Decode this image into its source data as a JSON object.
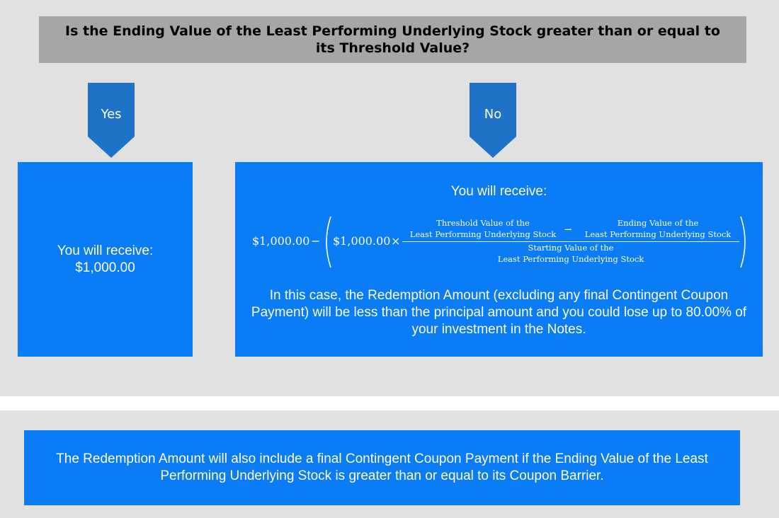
{
  "question": "Is the Ending Value of the Least Performing Underlying Stock greater than or equal to its Threshold Value?",
  "yes": {
    "label": "Yes",
    "line1": "You will receive:",
    "line2": "$1,000.00"
  },
  "no": {
    "label": "No",
    "title": "You will receive:",
    "formula": {
      "principal": "$1,000.00",
      "minus": "−",
      "inner_principal": "$1,000.00",
      "times": "×",
      "num_a_line1": "Threshold Value of the",
      "num_a_line2": "Least Performing Underlying Stock",
      "num_minus": "−",
      "num_b_line1": "Ending Value of the",
      "num_b_line2": "Least Performing Underlying Stock",
      "den_line1": "Starting Value of the",
      "den_line2": "Least Performing Underlying Stock"
    },
    "body": "In this case, the Redemption Amount (excluding any final Contingent Coupon Payment) will be less than the principal amount and you could lose up to 80.00% of your investment in the Notes."
  },
  "footer": "The Redemption Amount will also include a final Contingent Coupon Payment if the Ending Value of the Least Performing Underlying Stock is greater than or equal to its Coupon Barrier.",
  "colors": {
    "background": "#e1e1e1",
    "question_bar": "#a6a6a6",
    "arrow": "#1e73c8",
    "box": "#0a7cf5"
  }
}
